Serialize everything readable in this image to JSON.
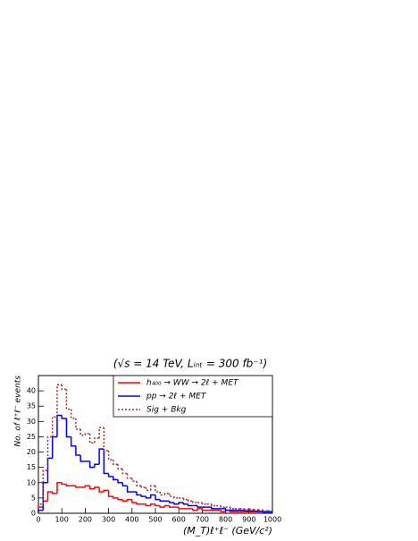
{
  "chart_data": {
    "type": "histogram",
    "title": "(√s = 14   TeV,   Lᵢₙₜ = 300   fb⁻¹)",
    "x_label": "(M_T)ℓ⁺ℓ⁻   (GeV/c²)",
    "y_label": "No.  of  ℓ⁺ℓ⁻  events",
    "bins": [
      0,
      20,
      40,
      60,
      80,
      100,
      120,
      140,
      160,
      180,
      200,
      220,
      240,
      260,
      280,
      300,
      320,
      340,
      360,
      380,
      400,
      420,
      440,
      460,
      480,
      500,
      520,
      540,
      560,
      580,
      600,
      620,
      640,
      660,
      680,
      700,
      720,
      740,
      760,
      780,
      800,
      820,
      840,
      860,
      880,
      900,
      920,
      940,
      960,
      980,
      1000
    ],
    "series": [
      {
        "name": "h₄₀₀ → WW → 2ℓ + MET",
        "color": "#ff0000",
        "style": "solid",
        "values": [
          2,
          4,
          7,
          6.5,
          10,
          9.5,
          9,
          9,
          8.5,
          8.5,
          9,
          8,
          8.5,
          7,
          7.5,
          5.5,
          5,
          4.5,
          4,
          4.5,
          3.5,
          3,
          3,
          2.5,
          3,
          2.5,
          2,
          2.5,
          2,
          2,
          1.5,
          1.5,
          1.5,
          1,
          1.5,
          1,
          1,
          1,
          1,
          0.5,
          1,
          0.5,
          0.5,
          0.5,
          0.5,
          0.5,
          0.5,
          0.5,
          0.3,
          0.3
        ]
      },
      {
        "name": "pp → 2ℓ + MET",
        "color": "#0000ff",
        "style": "solid",
        "values": [
          1,
          10,
          18,
          25,
          32,
          31,
          25,
          22,
          19,
          17,
          17,
          15,
          16,
          21,
          13,
          12,
          11,
          10,
          9,
          7,
          7,
          6,
          5.5,
          5,
          6,
          4.5,
          4,
          4,
          3.5,
          3,
          3.5,
          3,
          2.5,
          2.5,
          2,
          2,
          2,
          1.5,
          1.5,
          1.5,
          1,
          1,
          1,
          1,
          0.8,
          0.8,
          0.7,
          0.6,
          0.5,
          0.5
        ]
      },
      {
        "name": "Sig + Bkg",
        "color": "#a52a2a",
        "style": "dashed",
        "values": [
          3,
          14,
          25,
          31.5,
          42,
          40.5,
          34,
          31,
          27.5,
          25.5,
          26,
          23,
          24.5,
          28,
          20.5,
          17.5,
          16,
          14.5,
          13,
          11.5,
          10.5,
          9,
          8.5,
          7.5,
          9,
          7,
          6,
          6.5,
          5.5,
          5,
          5,
          4.5,
          4,
          3.5,
          3.5,
          3,
          3,
          2.5,
          2.5,
          2,
          2,
          1.5,
          1.5,
          1.5,
          1.3,
          1.3,
          1.2,
          1.1,
          0.8,
          0.8
        ]
      }
    ],
    "xlim": [
      0,
      1000
    ],
    "xticks": [
      0,
      100,
      200,
      300,
      400,
      500,
      600,
      700,
      800,
      900,
      1000
    ],
    "ylim": [
      0,
      45
    ],
    "yticks": [
      0,
      5,
      10,
      15,
      20,
      25,
      30,
      35,
      40
    ],
    "legend": "upper right"
  }
}
